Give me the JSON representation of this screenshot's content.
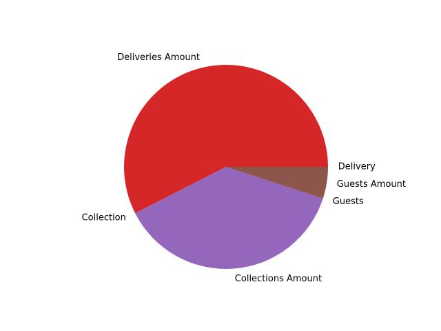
{
  "chart_data": {
    "type": "pie",
    "slices": [
      {
        "label": "Delivery",
        "value": 0.0
      },
      {
        "label": "Deliveries Amount",
        "value": 57.5,
        "color": "#d62728"
      },
      {
        "label": "Collection",
        "value": 0.0
      },
      {
        "label": "Collections Amount",
        "value": 37.5,
        "color": "#9467bd"
      },
      {
        "label": "Guests",
        "value": 0.0
      },
      {
        "label": "Guests Amount",
        "value": 5.0,
        "color": "#8c564b"
      }
    ],
    "start_angle_deg": 0,
    "direction": "counterclockwise",
    "legend": "none"
  }
}
